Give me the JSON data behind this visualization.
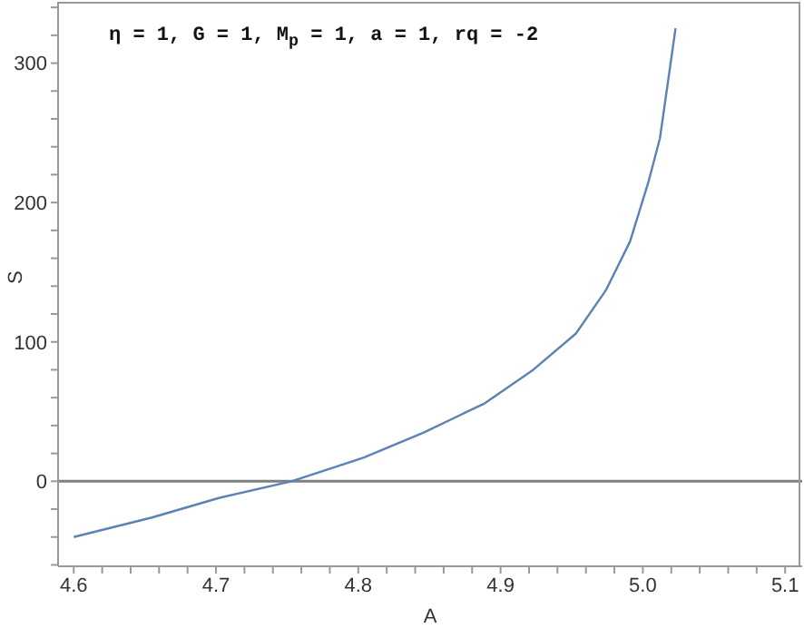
{
  "chart_data": {
    "type": "line",
    "title": "η = 1, G = 1, M$_{p}$ = 1, a = 1, rq = -2",
    "xlabel": "A",
    "ylabel": "S",
    "x": [
      4.6,
      4.655,
      4.702,
      4.753,
      4.804,
      4.846,
      4.889,
      4.923,
      4.953,
      4.974,
      4.991,
      5.004,
      5.012,
      5.018,
      5.023
    ],
    "series": [
      {
        "color": "#5e81b5",
        "values": [
          -40,
          -26,
          -12,
          0,
          17,
          35,
          56,
          80,
          106,
          137,
          172,
          215,
          246,
          289,
          325
        ]
      }
    ],
    "xlim": [
      4.589,
      5.112
    ],
    "ylim": [
      -61,
      344
    ],
    "xticks": [
      4.6,
      {
        "value": 4.62,
        "label": null
      },
      {
        "value": 4.64,
        "label": null
      },
      {
        "value": 4.66,
        "label": null
      },
      {
        "value": 4.68,
        "label": null
      },
      4.7,
      {
        "value": 4.72,
        "label": null
      },
      {
        "value": 4.74,
        "label": null
      },
      {
        "value": 4.76,
        "label": null
      },
      {
        "value": 4.78,
        "label": null
      },
      4.8,
      {
        "value": 4.82,
        "label": null
      },
      {
        "value": 4.84,
        "label": null
      },
      {
        "value": 4.86,
        "label": null
      },
      {
        "value": 4.88,
        "label": null
      },
      4.9,
      {
        "value": 4.92,
        "label": null
      },
      {
        "value": 4.94,
        "label": null
      },
      {
        "value": 4.96,
        "label": null
      },
      {
        "value": 4.98,
        "label": null
      },
      {
        "value": 5.0,
        "label": "5.0"
      },
      {
        "value": 5.02,
        "label": null
      },
      {
        "value": 5.04,
        "label": null
      },
      {
        "value": 5.06,
        "label": null
      },
      {
        "value": 5.08,
        "label": null
      },
      5.1
    ],
    "yticks": [
      {
        "value": -60,
        "label": null
      },
      {
        "value": -40,
        "label": null
      },
      {
        "value": -20,
        "label": null
      },
      0,
      {
        "value": 20,
        "label": null
      },
      {
        "value": 40,
        "label": null
      },
      {
        "value": 60,
        "label": null
      },
      {
        "value": 80,
        "label": null
      },
      100,
      {
        "value": 120,
        "label": null
      },
      {
        "value": 140,
        "label": null
      },
      {
        "value": 160,
        "label": null
      },
      {
        "value": 180,
        "label": null
      },
      200,
      {
        "value": 220,
        "label": null
      },
      {
        "value": 240,
        "label": null
      },
      {
        "value": 260,
        "label": null
      },
      {
        "value": 280,
        "label": null
      },
      300,
      {
        "value": 320,
        "label": null
      },
      {
        "value": 340,
        "label": null
      }
    ],
    "ref_lines": [
      {
        "axis": "y",
        "value": 0,
        "color": "#808080"
      }
    ],
    "grid": false,
    "legend": false,
    "marker": "none",
    "line_style": "solid"
  }
}
